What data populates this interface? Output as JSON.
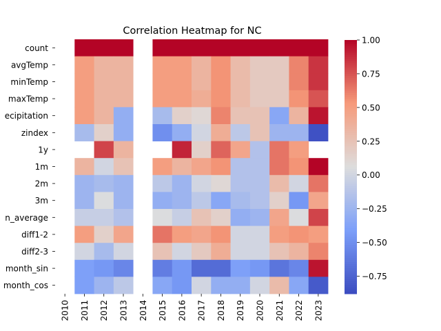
{
  "chart_data": {
    "type": "heatmap",
    "title": "Correlation Heatmap for NC",
    "xlabel": "",
    "ylabel": "",
    "columns": [
      "2010",
      "2011",
      "2012",
      "2013",
      "2014",
      "2015",
      "2016",
      "2017",
      "2018",
      "2019",
      "2020",
      "2021",
      "2022",
      "2023"
    ],
    "rows": [
      "count",
      "avgTemp",
      "minTemp",
      "maxTemp",
      "precipitation",
      "zindex",
      "1y",
      "1m",
      "2m",
      "3m",
      "month_average",
      "diff1-2",
      "diff2-3",
      "month_sin",
      "month_cos"
    ],
    "row_labels_visible": [
      "count",
      "avgTemp",
      "minTemp",
      "maxTemp",
      "ecipitation",
      "zindex",
      "1y",
      "1m",
      "2m",
      "3m",
      "n_average",
      "diff1-2",
      "diff2-3",
      "month_sin",
      "month_cos"
    ],
    "values": [
      [
        null,
        1.0,
        1.0,
        1.0,
        null,
        1.0,
        1.0,
        1.0,
        1.0,
        1.0,
        1.0,
        1.0,
        1.0,
        1.0
      ],
      [
        null,
        0.5,
        0.35,
        0.35,
        null,
        0.5,
        0.5,
        0.35,
        0.55,
        0.3,
        0.2,
        0.2,
        0.6,
        0.85
      ],
      [
        null,
        0.5,
        0.35,
        0.35,
        null,
        0.5,
        0.5,
        0.35,
        0.55,
        0.3,
        0.2,
        0.2,
        0.6,
        0.85
      ],
      [
        null,
        0.5,
        0.35,
        0.35,
        null,
        0.5,
        0.5,
        0.4,
        0.55,
        0.3,
        0.2,
        0.2,
        0.55,
        0.75
      ],
      [
        null,
        0.5,
        0.35,
        -0.3,
        null,
        -0.2,
        0.15,
        0.1,
        0.6,
        0.25,
        0.25,
        -0.35,
        0.35,
        0.95
      ],
      [
        null,
        -0.2,
        0.15,
        -0.3,
        null,
        -0.5,
        -0.3,
        0.0,
        0.4,
        -0.1,
        0.25,
        -0.25,
        -0.25,
        -0.85
      ],
      [
        null,
        null,
        0.8,
        0.35,
        null,
        null,
        0.9,
        0.15,
        0.7,
        0.45,
        -0.15,
        0.65,
        0.5,
        null
      ],
      [
        null,
        0.35,
        0.0,
        0.25,
        null,
        0.5,
        0.35,
        0.45,
        0.55,
        -0.15,
        -0.15,
        0.65,
        0.55,
        1.0
      ],
      [
        null,
        -0.25,
        -0.2,
        -0.25,
        null,
        -0.1,
        -0.25,
        0.0,
        0.1,
        -0.15,
        -0.15,
        0.3,
        0.0,
        0.65
      ],
      [
        null,
        -0.25,
        0.05,
        -0.25,
        null,
        -0.3,
        -0.25,
        -0.1,
        -0.35,
        -0.2,
        -0.15,
        0.15,
        -0.45,
        0.45
      ],
      [
        null,
        -0.05,
        -0.05,
        -0.15,
        null,
        0.05,
        -0.05,
        0.25,
        0.15,
        -0.3,
        -0.25,
        0.45,
        0.05,
        0.8
      ],
      [
        null,
        0.5,
        0.15,
        0.45,
        null,
        0.65,
        0.5,
        0.45,
        0.55,
        0.0,
        0.0,
        0.5,
        0.55,
        0.5
      ],
      [
        null,
        0.0,
        -0.2,
        0.0,
        null,
        0.25,
        0.0,
        0.2,
        0.4,
        0.0,
        0.0,
        0.25,
        0.35,
        0.6
      ],
      [
        null,
        -0.4,
        -0.45,
        -0.55,
        null,
        -0.6,
        -0.45,
        -0.7,
        -0.7,
        -0.4,
        -0.45,
        -0.65,
        -0.55,
        0.95
      ],
      [
        null,
        -0.4,
        -0.25,
        -0.1,
        null,
        -0.35,
        -0.45,
        0.0,
        -0.3,
        -0.3,
        0.0,
        0.3,
        -0.35,
        -0.8
      ]
    ],
    "vmin": -0.88,
    "vmax": 1.0,
    "colormap": "coolwarm",
    "colorbar_ticks": [
      "1.00",
      "0.75",
      "0.50",
      "0.25",
      "0.00",
      "−0.25",
      "−0.50",
      "−0.75"
    ],
    "colorbar_tick_values": [
      1.0,
      0.75,
      0.5,
      0.25,
      0.0,
      -0.25,
      -0.5,
      -0.75
    ],
    "missing_color": "#ffffff"
  }
}
